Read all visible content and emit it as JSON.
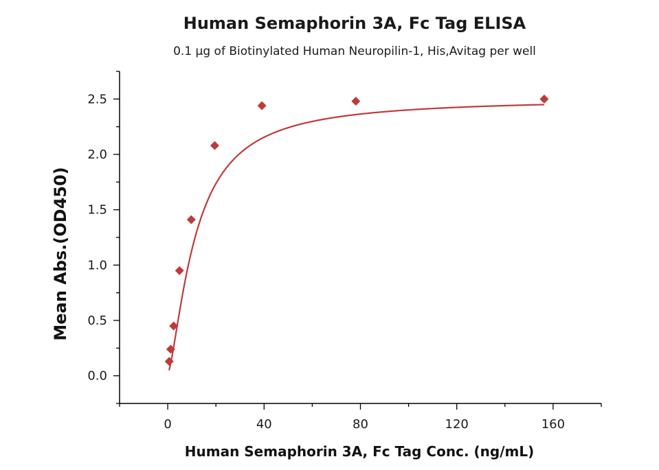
{
  "chart_data": {
    "type": "scatter",
    "title": "Human Semaphorin 3A, Fc Tag ELISA",
    "subtitle": "0.1 µg of Biotinylated Human Neuropilin-1, His,Avitag per well",
    "xlabel": "Human Semaphorin 3A, Fc Tag Conc. (ng/mL)",
    "ylabel": "Mean Abs.(OD450)",
    "xlim": [
      -20,
      180
    ],
    "ylim": [
      -0.25,
      2.75
    ],
    "x_ticks": [
      0,
      40,
      80,
      120,
      160
    ],
    "y_ticks": [
      0.0,
      0.5,
      1.0,
      1.5,
      2.0,
      2.5
    ],
    "x_tick_labels": [
      "0",
      "40",
      "80",
      "120",
      "160"
    ],
    "y_tick_labels": [
      "0.0",
      "0.5",
      "1.0",
      "1.5",
      "2.0",
      "2.5"
    ],
    "grid": false,
    "legend": "none",
    "series": [
      {
        "x": [
          0.61,
          1.22,
          2.44,
          4.88,
          9.77,
          19.5,
          39.1,
          78.1,
          156.3
        ],
        "y": [
          0.13,
          0.24,
          0.45,
          0.95,
          1.41,
          2.08,
          2.44,
          2.48,
          2.5
        ],
        "color": "#c0393b",
        "marker": "diamond",
        "fit": "4PL"
      }
    ]
  }
}
